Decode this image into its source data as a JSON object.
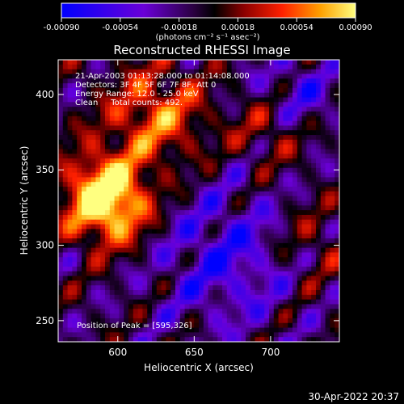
{
  "chart_data": {
    "type": "heatmap",
    "title": "Reconstructed RHESSI Image",
    "xlabel": "Heliocentric X (arcsec)",
    "ylabel": "Heliocentric Y (arcsec)",
    "xlim": [
      561,
      745
    ],
    "ylim": [
      236,
      423
    ],
    "x_ticks": [
      600,
      650,
      700
    ],
    "y_ticks": [
      250,
      300,
      350,
      400
    ],
    "colorbar": {
      "ticks": [
        "-0.00090",
        "-0.00054",
        "-0.00018",
        "0.00018",
        "0.00054",
        "0.00090"
      ],
      "range": [
        -0.0009,
        0.0009
      ],
      "units_label": "(photons cm⁻² s⁻¹ asec⁻²)"
    },
    "annotations": [
      "21-Apr-2003 01:13:28.000 to 01:14:08.000",
      "Detectors: 3F 4F 5F 6F 7F 8F, Att 0",
      "Energy Range: 12.0 - 25.0 keV",
      "Clean     Total counts: 492."
    ],
    "peak_label": "Position of Peak = [595,326]",
    "peak": [
      595,
      326
    ],
    "grid": false
  },
  "timestamp": "30-Apr-2022 20:37"
}
